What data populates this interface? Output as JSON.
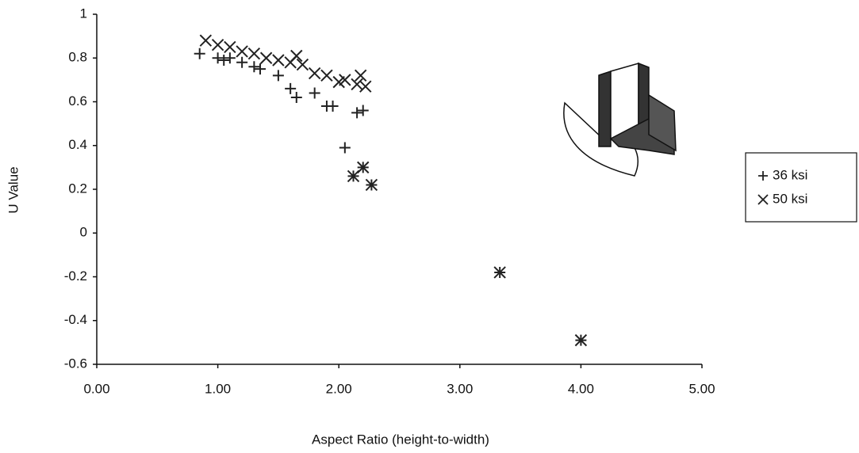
{
  "chart_data": {
    "type": "scatter",
    "x_label": "Aspect Ratio (height-to-width)",
    "y_label": "U Value",
    "xlim": [
      0,
      5
    ],
    "xticks": [
      {
        "value": 0,
        "label": "0.00"
      },
      {
        "value": 1,
        "label": "1.00"
      },
      {
        "value": 2,
        "label": "2.00"
      },
      {
        "value": 3,
        "label": "3.00"
      },
      {
        "value": 4,
        "label": "4.00"
      },
      {
        "value": 5,
        "label": "5.00"
      }
    ],
    "ylim": [
      -0.6,
      1
    ],
    "yticks": [
      -0.6,
      -0.4,
      -0.2,
      0,
      0.2,
      0.4,
      0.6,
      0.8,
      1
    ],
    "grid": false,
    "legend": "right",
    "series": [
      {
        "name": "36 ksi",
        "color": "#222222",
        "marker": "plus",
        "x": [
          0.85,
          1.0,
          1.05,
          1.1,
          1.2,
          1.3,
          1.35,
          1.5,
          1.6,
          1.65,
          1.8,
          1.9,
          1.95,
          2.05,
          2.15,
          2.2,
          2.12,
          2.2,
          2.27,
          3.33,
          4.0
        ],
        "values": [
          0.82,
          0.8,
          0.79,
          0.8,
          0.78,
          0.76,
          0.75,
          0.72,
          0.66,
          0.62,
          0.64,
          0.58,
          0.58,
          0.39,
          0.55,
          0.56,
          0.26,
          0.3,
          0.22,
          -0.18,
          -0.49
        ]
      },
      {
        "name": "50 ksi",
        "color": "#222222",
        "marker": "cross",
        "x": [
          0.9,
          1.0,
          1.1,
          1.2,
          1.3,
          1.4,
          1.5,
          1.6,
          1.65,
          1.7,
          1.8,
          1.9,
          2.0,
          2.05,
          2.15,
          2.18,
          2.22,
          2.12,
          2.2,
          2.27,
          3.33,
          4.0
        ],
        "values": [
          0.88,
          0.86,
          0.85,
          0.83,
          0.82,
          0.8,
          0.79,
          0.78,
          0.81,
          0.77,
          0.73,
          0.72,
          0.69,
          0.7,
          0.68,
          0.72,
          0.67,
          0.26,
          0.3,
          0.22,
          -0.18,
          -0.49
        ]
      }
    ]
  }
}
